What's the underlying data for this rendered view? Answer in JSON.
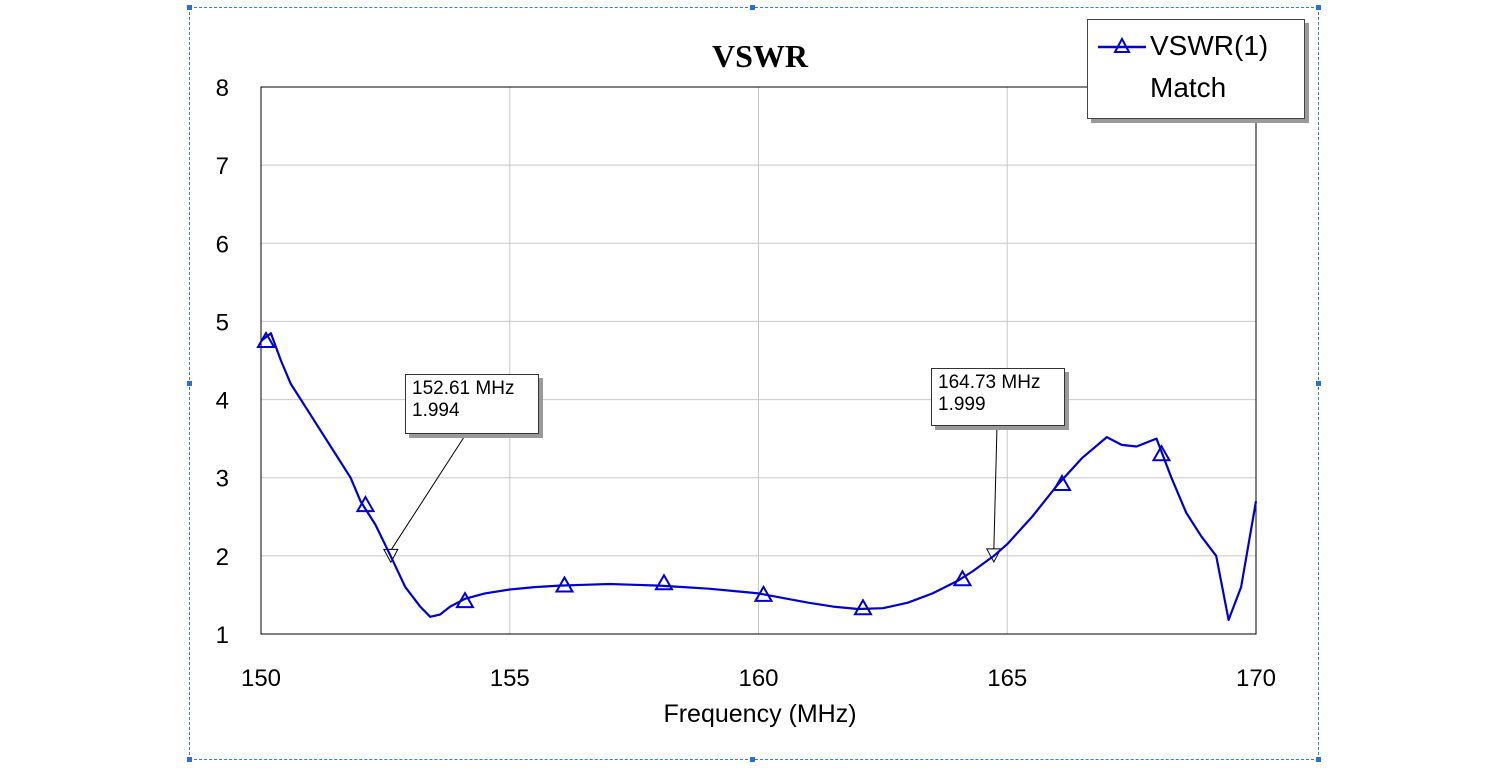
{
  "chart_data": {
    "type": "line",
    "title": "VSWR",
    "xlabel": "Frequency (MHz)",
    "ylabel": "",
    "xlim": [
      150,
      170
    ],
    "ylim": [
      1,
      8
    ],
    "xticks": [
      "150",
      "155",
      "160",
      "165",
      "170"
    ],
    "yticks": [
      "1",
      "2",
      "3",
      "4",
      "5",
      "6",
      "7",
      "8"
    ],
    "grid": true,
    "legend_position": "top-right",
    "series": [
      {
        "name": "VSWR(1)",
        "color": "#0000cc",
        "marker": "triangle",
        "x": [
          150.0,
          150.2,
          150.4,
          150.6,
          151.0,
          151.4,
          151.8,
          152.0,
          152.3,
          152.61,
          152.9,
          153.2,
          153.4,
          153.6,
          153.8,
          154.1,
          154.5,
          155.0,
          155.5,
          156.0,
          156.5,
          157.0,
          157.5,
          158.0,
          158.5,
          159.0,
          159.5,
          160.0,
          160.5,
          161.0,
          161.5,
          162.0,
          162.5,
          163.0,
          163.5,
          164.0,
          164.3,
          164.73,
          165.0,
          165.5,
          166.0,
          166.5,
          167.0,
          167.3,
          167.6,
          168.0,
          168.3,
          168.6,
          168.9,
          169.2,
          169.45,
          169.7,
          170.0
        ],
        "y": [
          4.75,
          4.85,
          4.5,
          4.2,
          3.8,
          3.4,
          3.0,
          2.7,
          2.4,
          1.994,
          1.6,
          1.35,
          1.22,
          1.25,
          1.35,
          1.45,
          1.52,
          1.57,
          1.6,
          1.62,
          1.63,
          1.64,
          1.63,
          1.62,
          1.6,
          1.58,
          1.55,
          1.52,
          1.46,
          1.4,
          1.35,
          1.32,
          1.33,
          1.4,
          1.52,
          1.68,
          1.8,
          1.999,
          2.15,
          2.5,
          2.9,
          3.25,
          3.52,
          3.42,
          3.4,
          3.5,
          3.0,
          2.55,
          2.25,
          2.0,
          1.18,
          1.6,
          2.7
        ],
        "marker_x": [
          150.1,
          152.1,
          154.1,
          156.1,
          158.1,
          160.1,
          162.1,
          164.1,
          166.1,
          168.1
        ],
        "marker_y": [
          4.75,
          2.65,
          1.42,
          1.62,
          1.65,
          1.5,
          1.33,
          1.7,
          2.92,
          3.3
        ]
      }
    ],
    "legend_extra": "Match",
    "annotations": [
      {
        "freq_text": "152.61 MHz",
        "value_text": "1.994",
        "x": 152.61,
        "y": 1.994
      },
      {
        "freq_text": "164.73 MHz",
        "value_text": "1.999",
        "x": 164.73,
        "y": 1.999
      }
    ]
  }
}
